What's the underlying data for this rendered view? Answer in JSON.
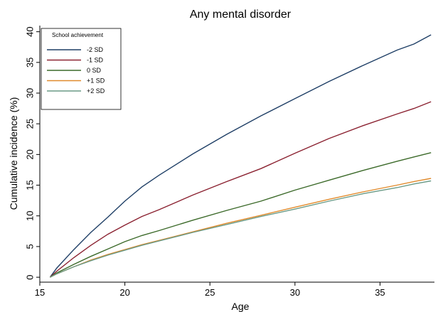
{
  "chart_data": {
    "type": "line",
    "title": "Any mental disorder",
    "xlabel": "Age",
    "ylabel": "Cumulative incidence (%)",
    "xlim": [
      15,
      38.2
    ],
    "ylim": [
      -0.8,
      41
    ],
    "xticks": [
      15,
      20,
      25,
      30,
      35
    ],
    "yticks": [
      0,
      5,
      10,
      15,
      20,
      25,
      30,
      35,
      40
    ],
    "grid": false,
    "legend": {
      "title": "School achievement",
      "placement": "top-left"
    },
    "series": [
      {
        "name": "-2 SD",
        "color": "#1f3f66",
        "points": [
          [
            15.6,
            0
          ],
          [
            16,
            1.5
          ],
          [
            17,
            4.5
          ],
          [
            18,
            7.3
          ],
          [
            19,
            9.8
          ],
          [
            20,
            12.4
          ],
          [
            21,
            14.7
          ],
          [
            22,
            16.6
          ],
          [
            24,
            20.1
          ],
          [
            26,
            23.3
          ],
          [
            28,
            26.3
          ],
          [
            30,
            29.1
          ],
          [
            32,
            31.9
          ],
          [
            34,
            34.5
          ],
          [
            36,
            37.0
          ],
          [
            37,
            38.0
          ],
          [
            38,
            39.5
          ]
        ]
      },
      {
        "name": "-1 SD",
        "color": "#8b2231",
        "points": [
          [
            15.6,
            0
          ],
          [
            16,
            1.0
          ],
          [
            17,
            3.2
          ],
          [
            18,
            5.2
          ],
          [
            19,
            7.0
          ],
          [
            20,
            8.5
          ],
          [
            21,
            9.9
          ],
          [
            22,
            11.0
          ],
          [
            24,
            13.4
          ],
          [
            26,
            15.6
          ],
          [
            28,
            17.7
          ],
          [
            30,
            20.2
          ],
          [
            32,
            22.6
          ],
          [
            34,
            24.7
          ],
          [
            36,
            26.6
          ],
          [
            37,
            27.5
          ],
          [
            38,
            28.6
          ]
        ]
      },
      {
        "name": "0 SD",
        "color": "#3c6a2a",
        "points": [
          [
            15.6,
            0
          ],
          [
            16,
            0.7
          ],
          [
            17,
            2.1
          ],
          [
            18,
            3.4
          ],
          [
            19,
            4.6
          ],
          [
            20,
            5.8
          ],
          [
            21,
            6.8
          ],
          [
            22,
            7.6
          ],
          [
            24,
            9.3
          ],
          [
            26,
            10.9
          ],
          [
            28,
            12.4
          ],
          [
            30,
            14.2
          ],
          [
            32,
            15.8
          ],
          [
            34,
            17.4
          ],
          [
            36,
            18.9
          ],
          [
            37,
            19.6
          ],
          [
            38,
            20.3
          ]
        ]
      },
      {
        "name": "+1 SD",
        "color": "#e08a2c",
        "points": [
          [
            15.6,
            0
          ],
          [
            16,
            0.55
          ],
          [
            17,
            1.7
          ],
          [
            18,
            2.8
          ],
          [
            19,
            3.7
          ],
          [
            20,
            4.5
          ],
          [
            21,
            5.3
          ],
          [
            22,
            6.0
          ],
          [
            24,
            7.4
          ],
          [
            26,
            8.8
          ],
          [
            28,
            10.1
          ],
          [
            30,
            11.4
          ],
          [
            32,
            12.7
          ],
          [
            34,
            13.9
          ],
          [
            36,
            15.0
          ],
          [
            37,
            15.6
          ],
          [
            38,
            16.1
          ]
        ]
      },
      {
        "name": "+2 SD",
        "color": "#6a9a86",
        "points": [
          [
            15.6,
            0
          ],
          [
            16,
            0.55
          ],
          [
            17,
            1.7
          ],
          [
            18,
            2.7
          ],
          [
            19,
            3.6
          ],
          [
            20,
            4.4
          ],
          [
            21,
            5.2
          ],
          [
            22,
            5.9
          ],
          [
            24,
            7.3
          ],
          [
            26,
            8.6
          ],
          [
            28,
            9.9
          ],
          [
            30,
            11.1
          ],
          [
            32,
            12.4
          ],
          [
            34,
            13.6
          ],
          [
            36,
            14.6
          ],
          [
            37,
            15.2
          ],
          [
            38,
            15.7
          ]
        ]
      }
    ]
  }
}
